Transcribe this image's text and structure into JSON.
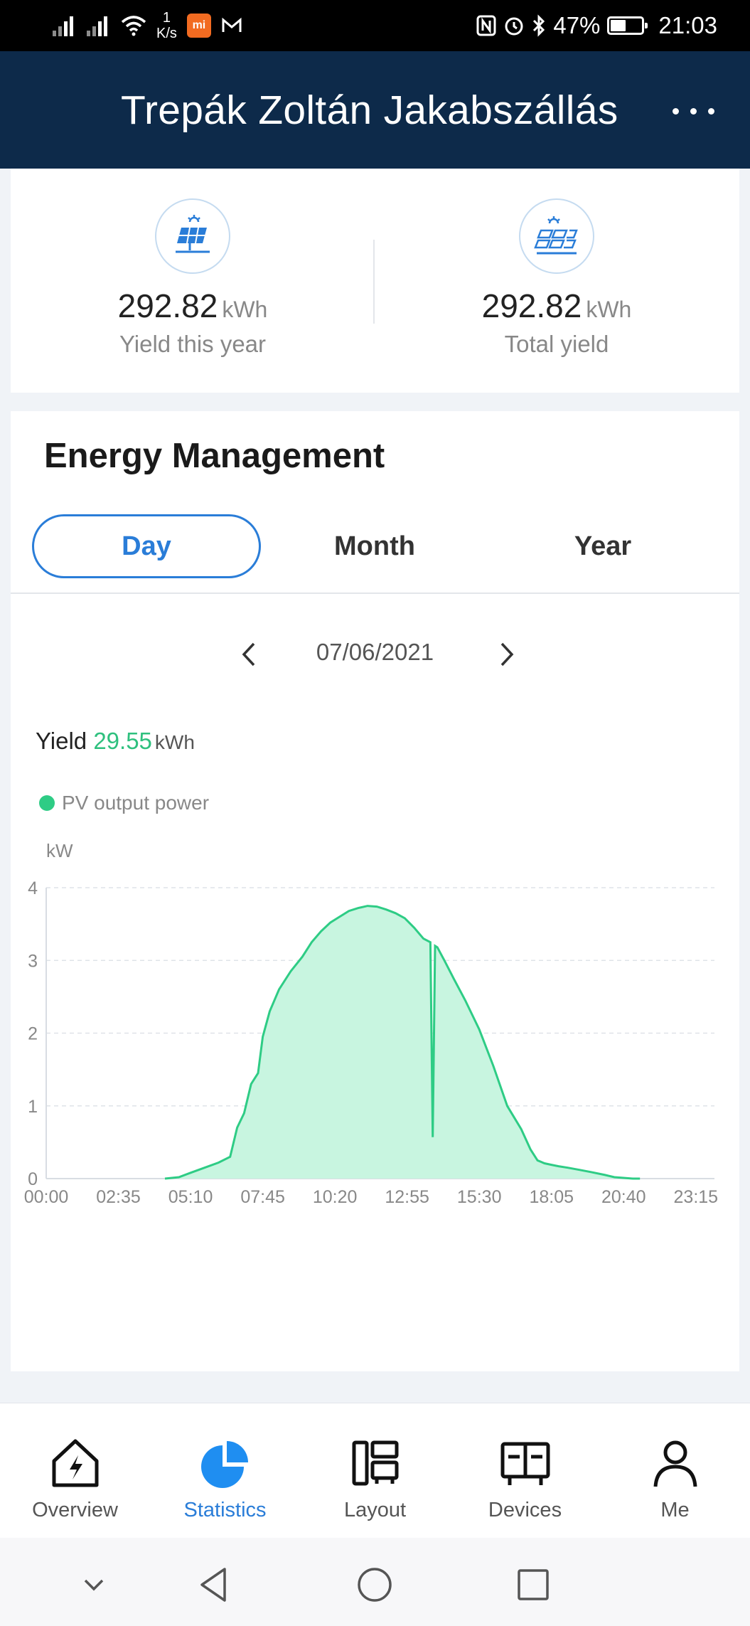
{
  "status_bar": {
    "net_speed_value": "1",
    "net_speed_unit": "K/s",
    "battery": "47%",
    "time": "21:03"
  },
  "header": {
    "title": "Trepák Zoltán Jakabszállás"
  },
  "stats": [
    {
      "value": "292.82",
      "unit": "kWh",
      "label": "Yield this year",
      "icon": "solar-panel-icon"
    },
    {
      "value": "292.82",
      "unit": "kWh",
      "label": "Total yield",
      "icon": "solar-array-icon"
    }
  ],
  "energy": {
    "heading": "Energy Management",
    "tabs": [
      {
        "label": "Day",
        "active": true
      },
      {
        "label": "Month",
        "active": false
      },
      {
        "label": "Year",
        "active": false
      }
    ],
    "date": "07/06/2021",
    "yield_label": "Yield",
    "yield_value": "29.55",
    "yield_unit": "kWh"
  },
  "chart_data": {
    "type": "area",
    "series": [
      {
        "name": "PV output power",
        "color": "#2ecc85"
      }
    ],
    "ylabel": "kW",
    "ylim": [
      0,
      4
    ],
    "yticks": [
      0,
      1,
      2,
      3,
      4
    ],
    "xlim": [
      "00:00",
      "23:55"
    ],
    "xticks": [
      "00:00",
      "02:35",
      "05:10",
      "07:45",
      "10:20",
      "12:55",
      "15:30",
      "18:05",
      "20:40",
      "23:15"
    ],
    "grid": true,
    "x": [
      "04:15",
      "04:45",
      "05:10",
      "05:40",
      "06:10",
      "06:35",
      "06:50",
      "07:05",
      "07:20",
      "07:35",
      "07:45",
      "08:00",
      "08:20",
      "08:45",
      "09:10",
      "09:30",
      "09:50",
      "10:10",
      "10:30",
      "10:50",
      "11:10",
      "11:30",
      "11:50",
      "12:10",
      "12:30",
      "12:50",
      "13:10",
      "13:30",
      "13:45",
      "13:50",
      "13:55",
      "14:00",
      "14:15",
      "14:35",
      "15:00",
      "15:30",
      "16:00",
      "16:30",
      "17:00",
      "17:20",
      "17:35",
      "17:50",
      "18:05",
      "18:20",
      "18:40",
      "19:05",
      "19:30",
      "20:00",
      "20:20",
      "20:40",
      "21:00",
      "21:15"
    ],
    "values": [
      0.0,
      0.02,
      0.08,
      0.15,
      0.22,
      0.3,
      0.7,
      0.9,
      1.3,
      1.45,
      1.95,
      2.3,
      2.6,
      2.85,
      3.05,
      3.25,
      3.4,
      3.52,
      3.6,
      3.68,
      3.72,
      3.75,
      3.74,
      3.7,
      3.65,
      3.58,
      3.45,
      3.3,
      3.25,
      0.57,
      3.2,
      3.18,
      3.0,
      2.75,
      2.45,
      2.05,
      1.55,
      1.0,
      0.68,
      0.4,
      0.25,
      0.21,
      0.19,
      0.17,
      0.15,
      0.12,
      0.09,
      0.05,
      0.02,
      0.01,
      0.0,
      0.0
    ],
    "color": "#2ecc85",
    "fill": "#c8f5e0"
  },
  "nav": [
    {
      "label": "Overview",
      "icon": "overview-bolt-icon",
      "active": false
    },
    {
      "label": "Statistics",
      "icon": "statistics-pie-icon",
      "active": true
    },
    {
      "label": "Layout",
      "icon": "layout-icon",
      "active": false
    },
    {
      "label": "Devices",
      "icon": "devices-icon",
      "active": false
    },
    {
      "label": "Me",
      "icon": "person-icon",
      "active": false
    }
  ]
}
